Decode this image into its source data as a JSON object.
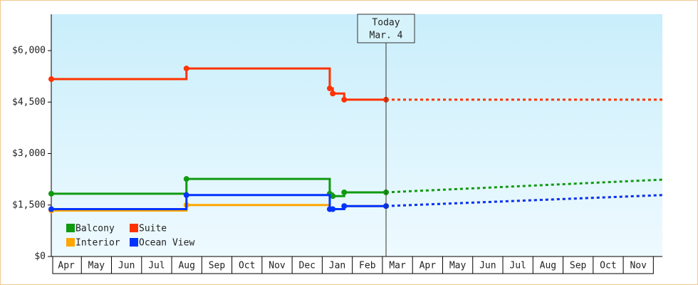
{
  "chart_data": {
    "type": "step-line",
    "categories": [
      "Apr",
      "May",
      "Jun",
      "Jul",
      "Aug",
      "Sep",
      "Oct",
      "Nov",
      "Dec",
      "Jan",
      "Feb",
      "Mar",
      "Apr",
      "May",
      "Jun",
      "Jul",
      "Aug",
      "Sep",
      "Oct",
      "Nov"
    ],
    "xlim": [
      0,
      20.3
    ],
    "ylim": [
      0,
      7060
    ],
    "yticks": [
      {
        "value": 0,
        "label": "$0"
      },
      {
        "value": 1500,
        "label": "$1,500"
      },
      {
        "value": 3000,
        "label": "$3,000"
      },
      {
        "value": 4500,
        "label": "$4,500"
      },
      {
        "value": 6000,
        "label": "$6,000"
      }
    ],
    "today": {
      "label": "Today",
      "date": "Mar. 4",
      "x": 11.12
    },
    "series": [
      {
        "name": "Balcony",
        "color": "#109a10",
        "x": [
          0,
          4.49,
          9.25,
          9.35,
          9.73,
          11.12
        ],
        "values": [
          1830,
          2260,
          1830,
          1760,
          1870,
          1870
        ],
        "projection": {
          "x": [
            11.12,
            20.3
          ],
          "values": [
            1870,
            2240
          ]
        }
      },
      {
        "name": "Suite",
        "color": "#ff3300",
        "x": [
          0,
          4.49,
          9.25,
          9.35,
          9.73,
          11.12
        ],
        "values": [
          5170,
          5480,
          4900,
          4750,
          4570,
          4570
        ],
        "projection": {
          "x": [
            11.12,
            20.3
          ],
          "values": [
            4570,
            4570
          ]
        }
      },
      {
        "name": "Interior",
        "color": "#ffa500",
        "x": [
          0,
          4.49,
          9.25,
          9.73,
          11.12
        ],
        "values": [
          1340,
          1500,
          1380,
          1470,
          1470
        ],
        "projection": {
          "x": [
            11.12,
            20.3
          ],
          "values": [
            1470,
            1790
          ]
        }
      },
      {
        "name": "Ocean View",
        "color": "#0033ff",
        "x": [
          0,
          4.49,
          9.25,
          9.35,
          9.73,
          11.12
        ],
        "values": [
          1380,
          1790,
          1380,
          1380,
          1470,
          1470
        ],
        "projection": {
          "x": [
            11.12,
            20.3
          ],
          "values": [
            1470,
            1790
          ]
        }
      }
    ]
  }
}
